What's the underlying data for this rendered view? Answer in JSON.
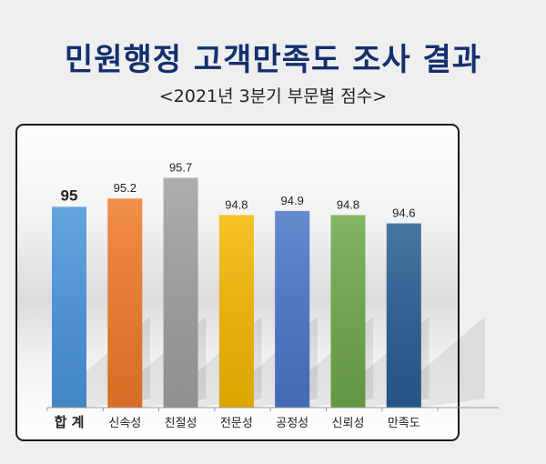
{
  "title": "민원행정 고객만족도 조사 결과",
  "subtitle": "<2021년 3분기 부문별 점수>",
  "chart_data": {
    "type": "bar",
    "title": "민원행정 고객만족도 조사 결과",
    "subtitle": "<2021년 3분기 부문별 점수>",
    "categories": [
      "합 계",
      "신속성",
      "친절성",
      "전문성",
      "공정성",
      "신뢰성",
      "만족도"
    ],
    "values": [
      95,
      95.2,
      95.7,
      94.8,
      94.9,
      94.8,
      94.6
    ],
    "value_labels": [
      "95",
      "95.2",
      "95.7",
      "94.8",
      "94.9",
      "94.8",
      "94.6"
    ],
    "colors": [
      "#4a95dc",
      "#f07a2a",
      "#a0a0a0",
      "#f5b800",
      "#4a76c8",
      "#6fa84a",
      "#275e94"
    ],
    "xlabel": "",
    "ylabel": "",
    "ylim": [
      90.15,
      96.5
    ],
    "grid": false,
    "legend": "none"
  }
}
